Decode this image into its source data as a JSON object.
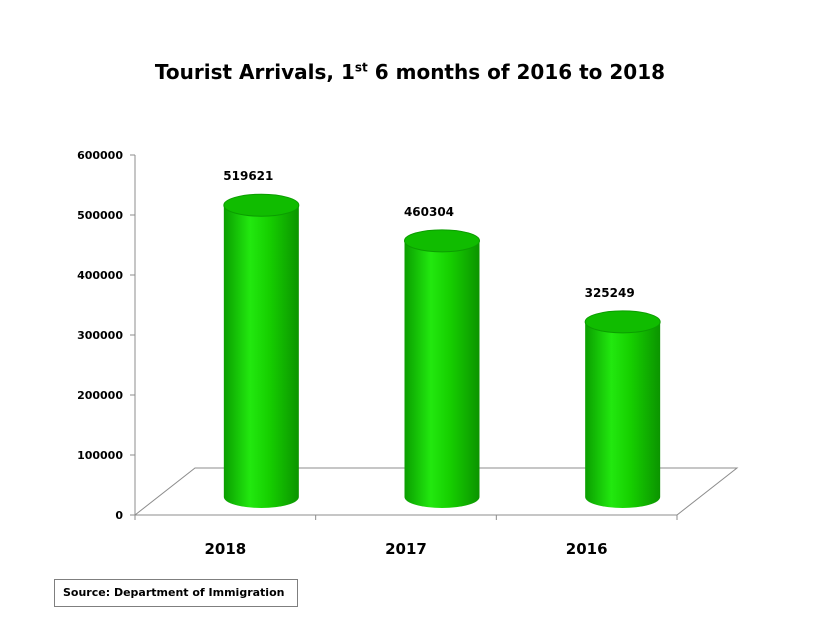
{
  "chart_data": {
    "type": "bar",
    "title_main": "Tourist  Arrivals,  1",
    "title_sup": "st",
    "title_rest": " 6 months of 2016 to 2018",
    "categories": [
      "2018",
      "2017",
      "2016"
    ],
    "values": [
      519621,
      460304,
      325249
    ],
    "data_labels": [
      "519621",
      "460304",
      "325249"
    ],
    "y_ticks": [
      "0",
      "100000",
      "200000",
      "300000",
      "400000",
      "500000",
      "600000"
    ],
    "ylim": [
      0,
      600000
    ],
    "bar_color": "#12d400",
    "grid": false
  },
  "source": "Source: Department of Immigration"
}
